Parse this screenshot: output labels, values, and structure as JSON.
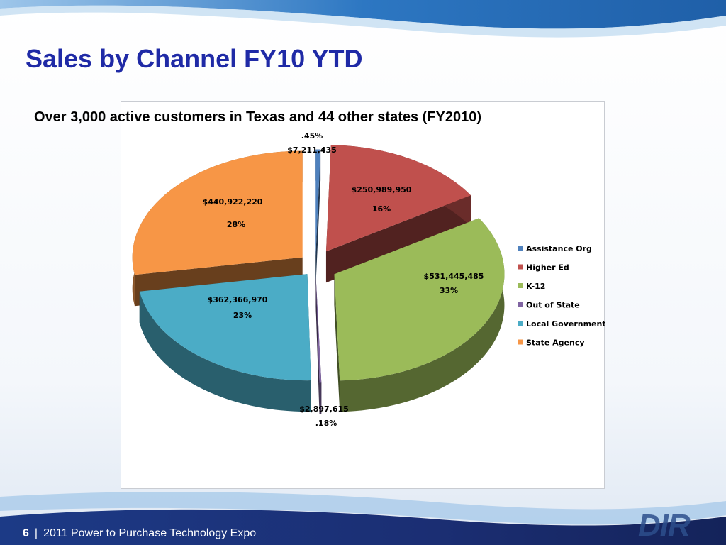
{
  "slide": {
    "title": "Sales by Channel FY10 YTD",
    "subtitle": "Over 3,000 active customers in Texas and 44 other states (FY2010)",
    "footer": {
      "page_number": "6",
      "separator": "|",
      "text": "2011 Power to Purchase Technology Expo"
    },
    "logo_text": "DIR",
    "colors": {
      "title": "#1f2aa6",
      "header_band": "#2a6fb8",
      "footer_band": "#1a2f6e"
    }
  },
  "chart_data": {
    "type": "pie",
    "style": "3d-exploded",
    "legend_position": "right",
    "series": [
      {
        "name": "Assistance Org",
        "value": 7211435,
        "value_label": "$7,211,435",
        "percent_label": ".45%",
        "color": "#4f81bd"
      },
      {
        "name": "Higher Ed",
        "value": 250989950,
        "value_label": "$250,989,950",
        "percent_label": "16%",
        "color": "#c0504d"
      },
      {
        "name": "K-12",
        "value": 531445485,
        "value_label": "$531,445,485",
        "percent_label": "33%",
        "color": "#9bbb59"
      },
      {
        "name": "Out of State",
        "value": 2897615,
        "value_label": "$2,897,615",
        "percent_label": ".18%",
        "color": "#8064a2"
      },
      {
        "name": "Local Government",
        "value": 362366970,
        "value_label": "$362,366,970",
        "percent_label": "23%",
        "color": "#4bacc6"
      },
      {
        "name": "State Agency",
        "value": 440922220,
        "value_label": "$440,922,220",
        "percent_label": "28%",
        "color": "#f79646"
      }
    ]
  }
}
